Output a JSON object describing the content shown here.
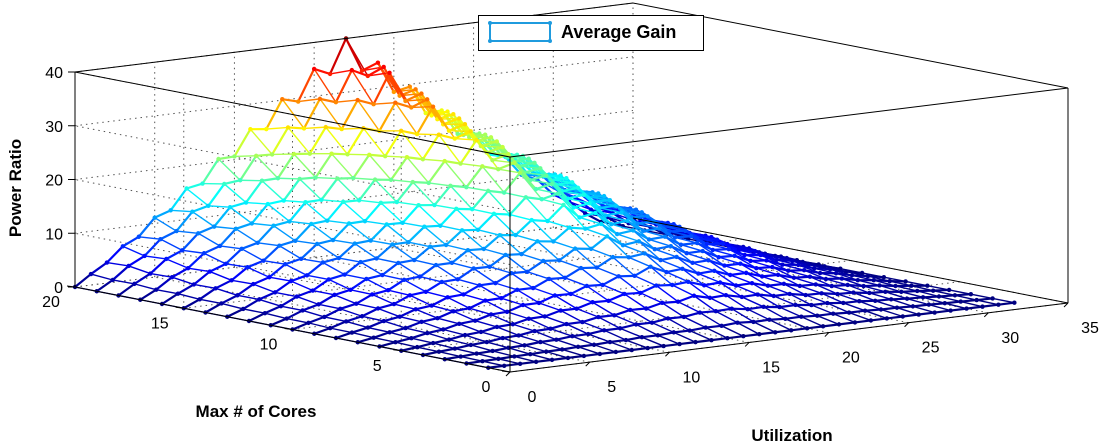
{
  "chart_data": {
    "type": "surface3d",
    "title": "",
    "xlabel": "Utilization",
    "ylabel": "Max # of Cores",
    "zlabel": "Power Ratio",
    "x_ticks": [
      "0",
      "5",
      "10",
      "15",
      "20",
      "25",
      "30",
      "35"
    ],
    "y_ticks": [
      "0",
      "5",
      "10",
      "15",
      "20"
    ],
    "z_ticks": [
      "0",
      "10",
      "20",
      "30",
      "40"
    ],
    "xlim": [
      0,
      35
    ],
    "ylim": [
      0,
      20
    ],
    "zlim": [
      0,
      40
    ],
    "grid": true,
    "colormap": "jet",
    "legend": {
      "position": "top-center",
      "entries": [
        "Average Gain"
      ]
    },
    "series": [
      {
        "name": "Average Gain",
        "x_range": [
          0,
          33
        ],
        "y_range": [
          1,
          20
        ],
        "z_peak": 40,
        "profile": "ridge peaking near utilization 17 and 20 cores, falling to ~0 at utilization 0 and 33 and at 1 core"
      }
    ]
  },
  "colors": {
    "legend_line": "#1f9bde",
    "axis": "#000000",
    "grid": "#333333"
  }
}
